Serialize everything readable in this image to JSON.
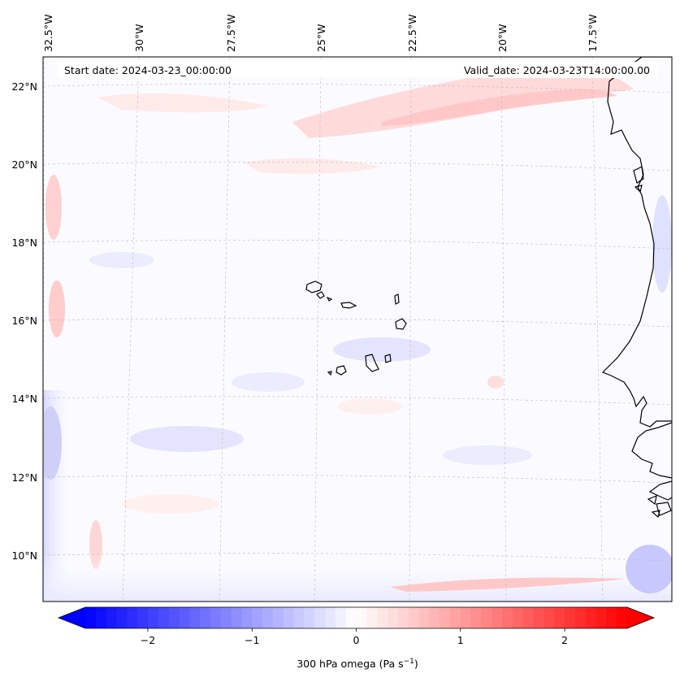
{
  "header": {
    "start_date": "Start date: 2024-03-23_00:00:00",
    "valid_date": "Valid_date: 2024-03-23T14:00:00.00"
  },
  "longitude_labels": [
    "32.5°W",
    "30°W",
    "27.5°W",
    "25°W",
    "22.5°W",
    "20°W",
    "17.5°W"
  ],
  "latitude_labels": [
    "22°N",
    "20°N",
    "18°N",
    "16°N",
    "14°N",
    "12°N",
    "10°N"
  ],
  "colorbar": {
    "ticks": [
      "−2",
      "−1",
      "0",
      "1",
      "2"
    ],
    "tick_values": [
      -2,
      -1,
      0,
      1,
      2
    ],
    "range": [
      -2.6,
      2.6
    ],
    "colors": {
      "low": "#0000ff",
      "mid": "#ffffff",
      "high": "#ff0000"
    },
    "label_main": "300 hPa omega (Pa s",
    "label_sup": "−1",
    "label_end": ")"
  },
  "map": {
    "variable": "300 hPa omega",
    "units": "Pa s−1",
    "features": [
      "Cape Verde islands",
      "West African coastline (Mauritania, Senegal, Gambia, Guinea-Bissau)"
    ],
    "gridline_color": "#bbbbbb",
    "coast_color": "#000000"
  }
}
